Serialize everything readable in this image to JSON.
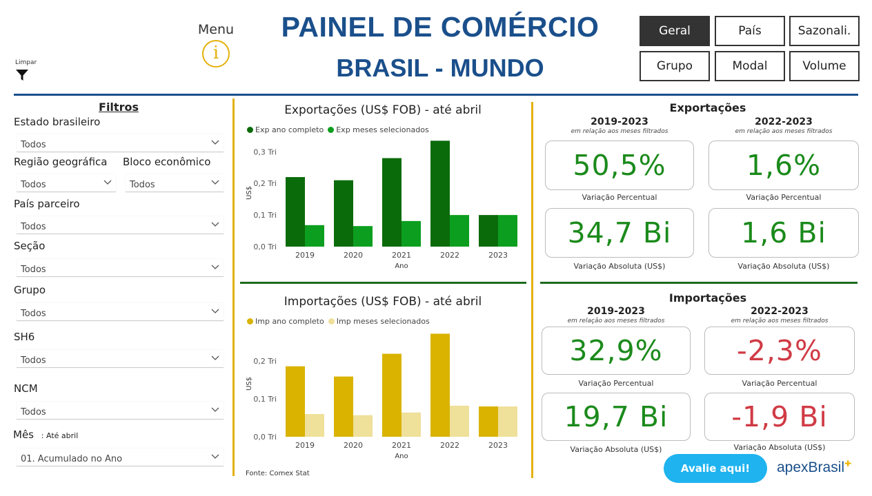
{
  "header": {
    "limpar_label": "Limpar",
    "menu_label": "Menu",
    "title_line1": "PAINEL DE COMÉRCIO",
    "title_line2": "BRASIL - MUNDO",
    "nav": [
      "Geral",
      "País",
      "Sazonali.",
      "Grupo",
      "Modal",
      "Volume"
    ],
    "active_nav": "Geral"
  },
  "filters": {
    "title": "Filtros",
    "estado_label": "Estado brasileiro",
    "estado_value": "Todos",
    "regiao_label": "Região geográfica",
    "regiao_value": "Todos",
    "bloco_label": "Bloco econômico",
    "bloco_value": "Todos",
    "pais_label": "País parceiro",
    "pais_value": "Todos",
    "secao_label": "Seção",
    "secao_value": "Todos",
    "grupo_label": "Grupo",
    "grupo_value": "Todos",
    "sh6_label": "SH6",
    "sh6_value": "Todos",
    "ncm_label": "NCM",
    "ncm_value": "Todos",
    "mes_label": "Mês",
    "mes_sub": ": Até abril",
    "mes_value": "01. Acumulado no Ano"
  },
  "chart_data": [
    {
      "type": "bar",
      "title": "Exportações (US$ FOB) - até abril",
      "xlabel": "Ano",
      "ylabel": "US$",
      "categories": [
        "2019",
        "2020",
        "2021",
        "2022",
        "2023"
      ],
      "yticks": [
        "0,0 Tri",
        "0,1 Tri",
        "0,2 Tri",
        "0,3 Tri"
      ],
      "ylim": [
        0,
        0.34
      ],
      "series": [
        {
          "name": "Exp ano completo",
          "color": "#0a6b0a",
          "values": [
            0.22,
            0.21,
            0.28,
            0.335,
            0.1
          ]
        },
        {
          "name": "Exp meses selecionados",
          "color": "#0c9e1f",
          "values": [
            0.068,
            0.065,
            0.081,
            0.1,
            0.1
          ]
        }
      ]
    },
    {
      "type": "bar",
      "title": "Importações (US$ FOB) - até abril",
      "xlabel": "Ano",
      "ylabel": "US$",
      "categories": [
        "2019",
        "2020",
        "2021",
        "2022",
        "2023"
      ],
      "yticks": [
        "0,0 Tri",
        "0,1 Tri",
        "0,2 Tri"
      ],
      "ylim": [
        0,
        0.28
      ],
      "series": [
        {
          "name": "Imp ano completo",
          "color": "#d9b300",
          "values": [
            0.186,
            0.159,
            0.219,
            0.272,
            0.08
          ]
        },
        {
          "name": "Imp meses selecionados",
          "color": "#efe09a",
          "values": [
            0.06,
            0.057,
            0.064,
            0.082,
            0.08
          ]
        }
      ]
    }
  ],
  "fonte": "Fonte: Comex Stat",
  "exportacoes": {
    "title": "Exportações",
    "left_period": "2019-2023",
    "right_period": "2022-2023",
    "period_sub": "em relação aos meses filtrados",
    "left_pct": "50,5%",
    "right_pct": "1,6%",
    "left_abs": "34,7 Bi",
    "right_abs": "1,6 Bi",
    "pct_caption": "Variação Percentual",
    "abs_caption": "Variação Absoluta (US$)"
  },
  "importacoes": {
    "title": "Importações",
    "left_period": "2019-2023",
    "right_period": "2022-2023",
    "period_sub": "em relação aos meses filtrados",
    "left_pct": "32,9%",
    "right_pct": "-2,3%",
    "left_abs": "19,7 Bi",
    "right_abs": "-1,9 Bi",
    "pct_caption": "Variação Percentual",
    "abs_caption": "Variação Absoluta (US$)"
  },
  "avalie_label": "Avalie aqui!",
  "logo_text": "apexBrasil",
  "colors": {
    "navy": "#1a4f8b",
    "gold": "#e3b10b",
    "green_text": "#1b8a1b",
    "red_text": "#d03b45",
    "cyan": "#1fb3ef"
  }
}
